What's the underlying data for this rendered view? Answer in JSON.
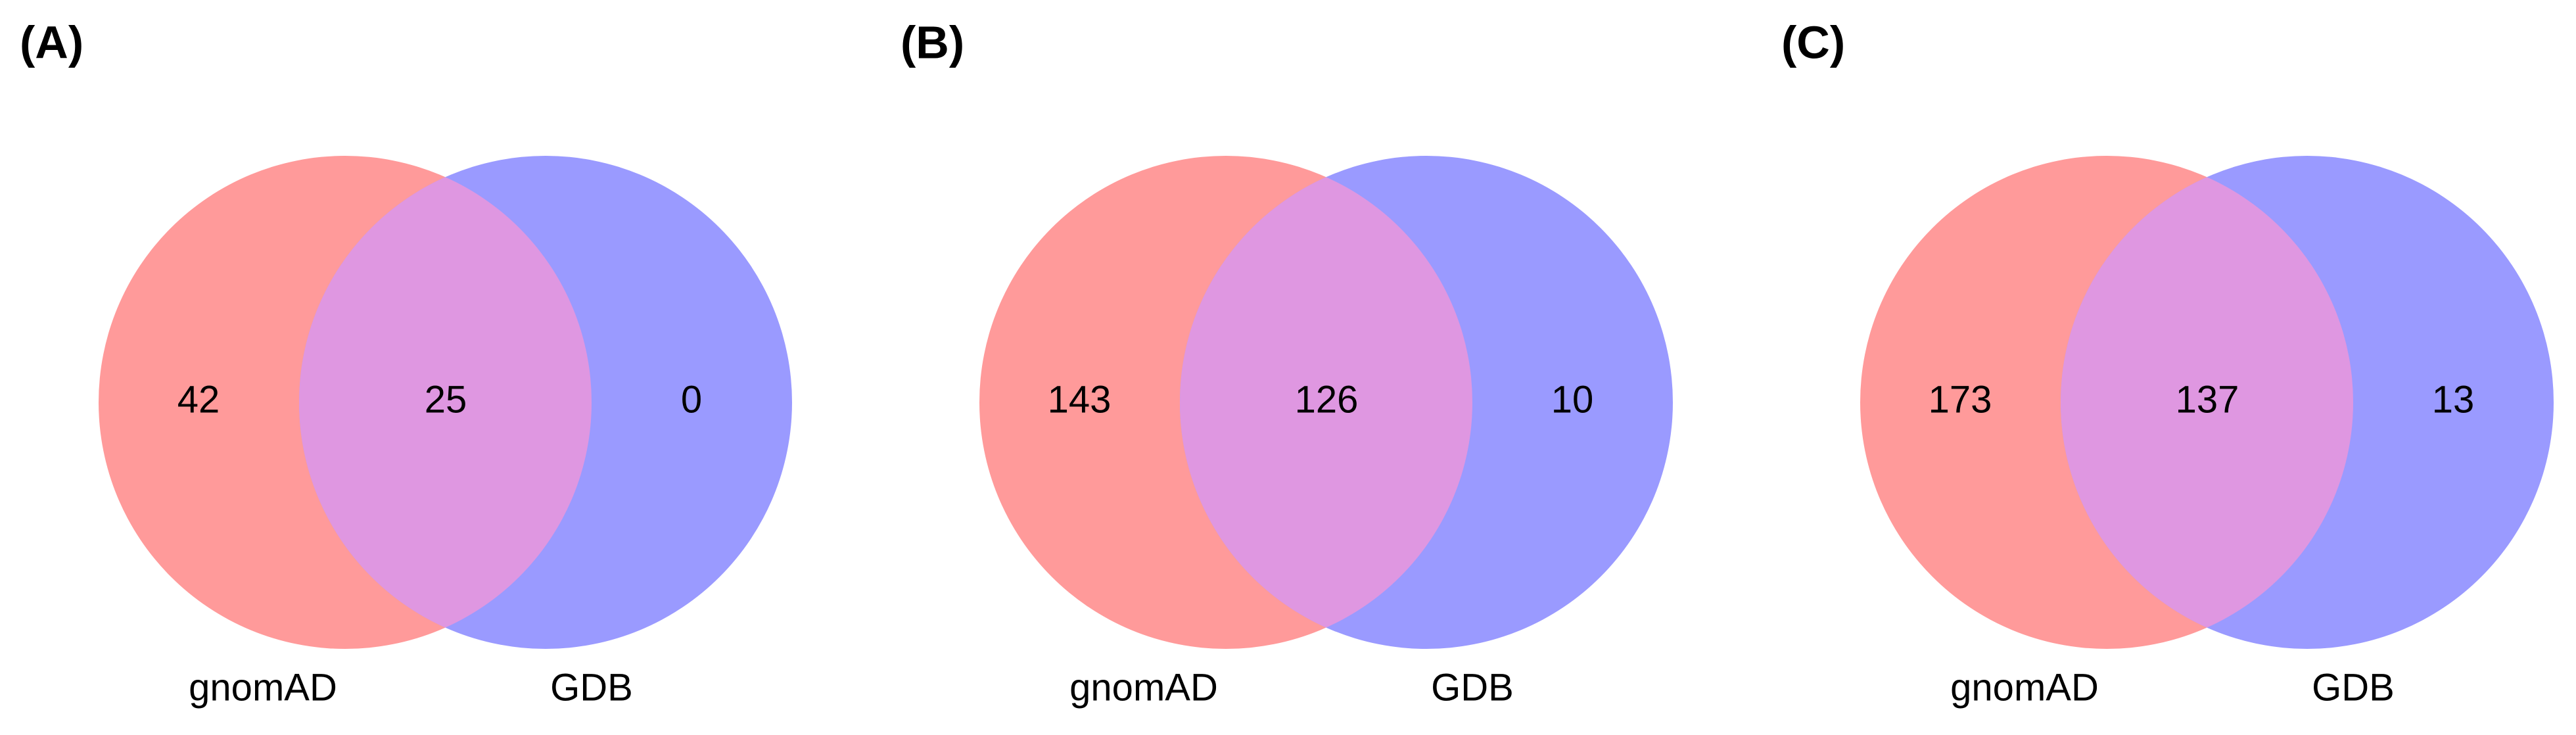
{
  "chart_data": [
    {
      "type": "venn",
      "title": "(A)",
      "sets": [
        {
          "name": "gnomAD",
          "color": "#ff9a9a"
        },
        {
          "name": "GDB",
          "color": "#9a9aff"
        }
      ],
      "overlap_color": "#df97e1",
      "values": [
        42,
        25,
        0
      ]
    },
    {
      "type": "venn",
      "title": "(B)",
      "sets": [
        {
          "name": "gnomAD",
          "color": "#ff9a9a"
        },
        {
          "name": "GDB",
          "color": "#9a9aff"
        }
      ],
      "overlap_color": "#df97e1",
      "values": [
        143,
        126,
        10
      ]
    },
    {
      "type": "venn",
      "title": "(C)",
      "sets": [
        {
          "name": "gnomAD",
          "color": "#ff9a9a"
        },
        {
          "name": "GDB",
          "color": "#9a9aff"
        }
      ],
      "overlap_color": "#df97e1",
      "values": [
        173,
        137,
        13
      ]
    }
  ]
}
